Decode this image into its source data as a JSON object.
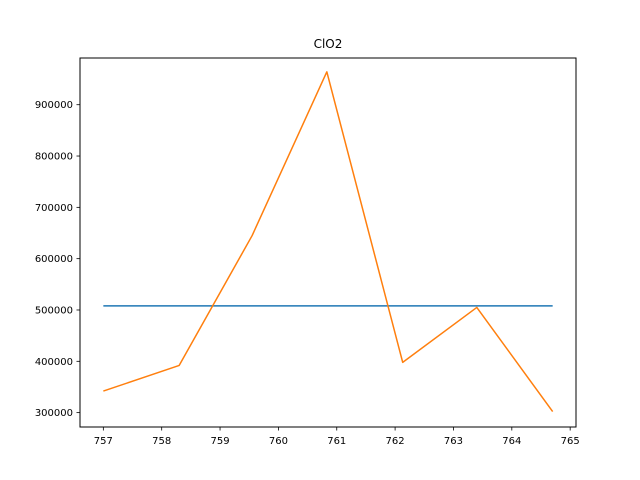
{
  "chart_data": {
    "type": "line",
    "title": "ClO2",
    "xlabel": "",
    "ylabel": "",
    "xlim": [
      756.6,
      765.1
    ],
    "ylim": [
      272000,
      991000
    ],
    "x_ticks": [
      757,
      758,
      759,
      760,
      761,
      762,
      763,
      764,
      765
    ],
    "y_ticks": [
      300000,
      400000,
      500000,
      600000,
      700000,
      800000,
      900000
    ],
    "grid": false,
    "series": [
      {
        "color": "#1f77b4",
        "x": [
          757.0,
          764.7
        ],
        "y": [
          508000,
          508000
        ]
      },
      {
        "color": "#ff7f0e",
        "x": [
          757.0,
          758.3,
          759.55,
          760.83,
          762.13,
          763.4,
          764.7
        ],
        "y": [
          342000,
          392000,
          645000,
          964000,
          398000,
          505000,
          302000
        ]
      }
    ]
  }
}
